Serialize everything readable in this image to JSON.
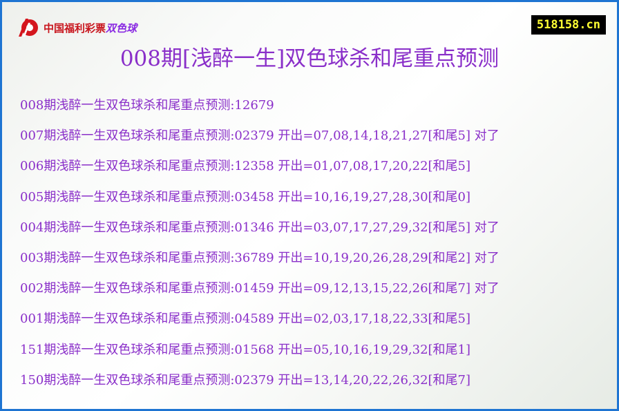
{
  "header": {
    "logo_text": "中国福利彩票",
    "logo_brand": "双色球",
    "site": "518158.cn",
    "title": "008期[浅醉一生]双色球杀和尾重点预测"
  },
  "colors": {
    "text": "#8a2fc9",
    "border": "#1e74d2",
    "site_bg": "#000000",
    "site_text": "#ffff33"
  },
  "rows": [
    "008期浅醉一生双色球杀和尾重点预测:12679",
    "007期浅醉一生双色球杀和尾重点预测:02379 开出=07,08,14,18,21,27[和尾5] 对了",
    "006期浅醉一生双色球杀和尾重点预测:12358 开出=01,07,08,17,20,22[和尾5]",
    "005期浅醉一生双色球杀和尾重点预测:03458 开出=10,16,19,27,28,30[和尾0]",
    "004期浅醉一生双色球杀和尾重点预测:01346 开出=03,07,17,27,29,32[和尾5] 对了",
    "003期浅醉一生双色球杀和尾重点预测:36789 开出=10,19,20,26,28,29[和尾2] 对了",
    "002期浅醉一生双色球杀和尾重点预测:01459 开出=09,12,13,15,22,26[和尾7] 对了",
    "001期浅醉一生双色球杀和尾重点预测:04589 开出=02,03,17,18,22,33[和尾5]",
    "151期浅醉一生双色球杀和尾重点预测:01568 开出=05,10,16,19,29,32[和尾1]",
    "150期浅醉一生双色球杀和尾重点预测:02379 开出=13,14,20,22,26,32[和尾7]"
  ]
}
